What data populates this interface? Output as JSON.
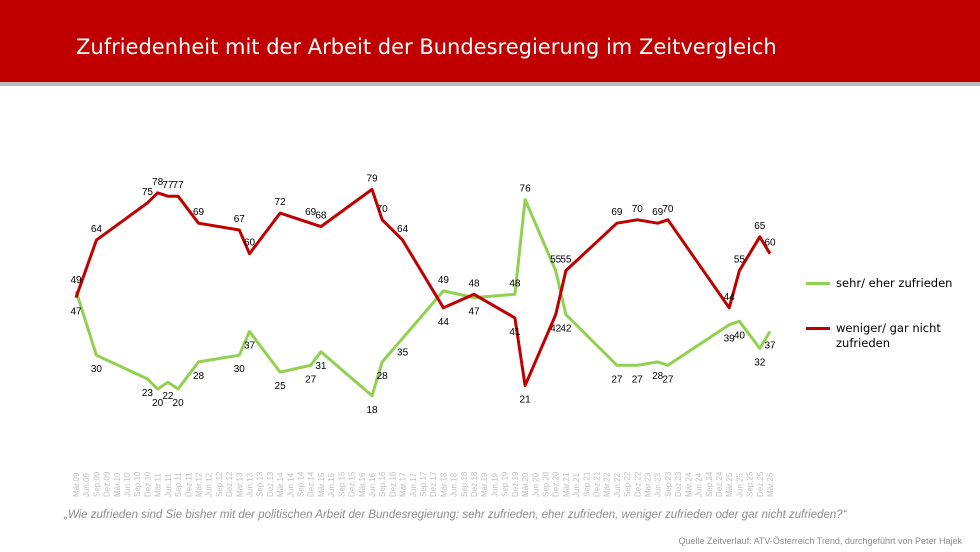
{
  "header": {
    "title": "Zufriedenheit mit der Arbeit der Bundesregierung im Zeitvergleich"
  },
  "colors": {
    "banner": "#c00000",
    "satisfied": "#92d050",
    "dissatisfied": "#c00000"
  },
  "footer": {
    "question": "„Wie zufrieden sind Sie bisher mit der politischen Arbeit der Bundesregierung: sehr zufrieden, eher zufrieden, weniger zufrieden oder gar nicht zufrieden?“",
    "source": "Quelle Zeitverlauf: ATV-Österreich Trend, durchgeführt von Peter Hajek"
  },
  "chart_data": {
    "type": "line",
    "title": "Zufriedenheit mit der Arbeit der Bundesregierung im Zeitvergleich",
    "xlabel": "",
    "ylabel": "",
    "legend_position": "right",
    "grid": false,
    "categories": [
      "Mär.09",
      "Jun.09",
      "Sep.09",
      "Dez.09",
      "Mär.10",
      "Jun.10",
      "Sep.10",
      "Dez.10",
      "Mär.11",
      "Jun.11",
      "Sep.11",
      "Dez.11",
      "Mär.12",
      "Jun.12",
      "Sep.12",
      "Dez.12",
      "Mär.13",
      "Jun.13",
      "Sep.13",
      "Dez.13",
      "Mär.14",
      "Jun.14",
      "Sep.14",
      "Dez.14",
      "Mär.15",
      "Jun.15",
      "Sep.15",
      "Dez.15",
      "Mär.16",
      "Jun.16",
      "Sep.16",
      "Dez.16",
      "Mär.17",
      "Jun.17",
      "Sep.17",
      "Dez.17",
      "Mär.18",
      "Jun.18",
      "Sep.18",
      "Dez.18",
      "Mär.19",
      "Jun.19",
      "Sep.19",
      "Dez.19",
      "Mär.20",
      "Jun.20",
      "Sep.20",
      "Dez.20",
      "Mär.21",
      "Jun.21",
      "Sep.21",
      "Dez.21",
      "Mär.22",
      "Jun.22",
      "Sep.22",
      "Dez.22",
      "Mär.23",
      "Jun.23",
      "Sep.23",
      "Dez.23",
      "Mär.24",
      "Jun.24",
      "Sep.24",
      "Dez.24",
      "Mär.25",
      "Jun.25",
      "Sep.25",
      "Dez.25",
      "Mär.26"
    ],
    "ylim": [
      0,
      100
    ],
    "series": [
      {
        "name": "sehr/ eher zufrieden",
        "color": "#92d050",
        "points": [
          {
            "x": 0,
            "value": 49
          },
          {
            "x": 2,
            "value": 30
          },
          {
            "x": 7,
            "value": 23
          },
          {
            "x": 8,
            "value": 20
          },
          {
            "x": 9,
            "value": 22
          },
          {
            "x": 10,
            "value": 20
          },
          {
            "x": 12,
            "value": 28
          },
          {
            "x": 16,
            "value": 30
          },
          {
            "x": 17,
            "value": 37
          },
          {
            "x": 20,
            "value": 25
          },
          {
            "x": 23,
            "value": 27
          },
          {
            "x": 24,
            "value": 31
          },
          {
            "x": 29,
            "value": 18
          },
          {
            "x": 30,
            "value": 28
          },
          {
            "x": 32,
            "value": 35
          },
          {
            "x": 36,
            "value": 49
          },
          {
            "x": 39,
            "value": 47
          },
          {
            "x": 43,
            "value": 48
          },
          {
            "x": 44,
            "value": 76
          },
          {
            "x": 47,
            "value": 55
          },
          {
            "x": 48,
            "value": 42
          },
          {
            "x": 53,
            "value": 27
          },
          {
            "x": 55,
            "value": 27
          },
          {
            "x": 57,
            "value": 28
          },
          {
            "x": 58,
            "value": 27
          },
          {
            "x": 64,
            "value": 39
          },
          {
            "x": 65,
            "value": 40
          },
          {
            "x": 67,
            "value": 32
          },
          {
            "x": 68,
            "value": 37
          }
        ]
      },
      {
        "name": "weniger/ gar nicht zufrieden",
        "color": "#c00000",
        "points": [
          {
            "x": 0,
            "value": 47
          },
          {
            "x": 2,
            "value": 64
          },
          {
            "x": 7,
            "value": 75
          },
          {
            "x": 8,
            "value": 78
          },
          {
            "x": 9,
            "value": 77
          },
          {
            "x": 10,
            "value": 77
          },
          {
            "x": 12,
            "value": 69
          },
          {
            "x": 16,
            "value": 67
          },
          {
            "x": 17,
            "value": 60
          },
          {
            "x": 20,
            "value": 72
          },
          {
            "x": 23,
            "value": 69
          },
          {
            "x": 24,
            "value": 68
          },
          {
            "x": 29,
            "value": 79
          },
          {
            "x": 30,
            "value": 70
          },
          {
            "x": 32,
            "value": 64
          },
          {
            "x": 36,
            "value": 44
          },
          {
            "x": 39,
            "value": 48
          },
          {
            "x": 43,
            "value": 41
          },
          {
            "x": 44,
            "value": 21
          },
          {
            "x": 47,
            "value": 42
          },
          {
            "x": 48,
            "value": 55
          },
          {
            "x": 53,
            "value": 69
          },
          {
            "x": 55,
            "value": 70
          },
          {
            "x": 57,
            "value": 69
          },
          {
            "x": 58,
            "value": 70
          },
          {
            "x": 64,
            "value": 44
          },
          {
            "x": 65,
            "value": 55
          },
          {
            "x": 67,
            "value": 65
          },
          {
            "x": 68,
            "value": 60
          }
        ]
      }
    ]
  }
}
